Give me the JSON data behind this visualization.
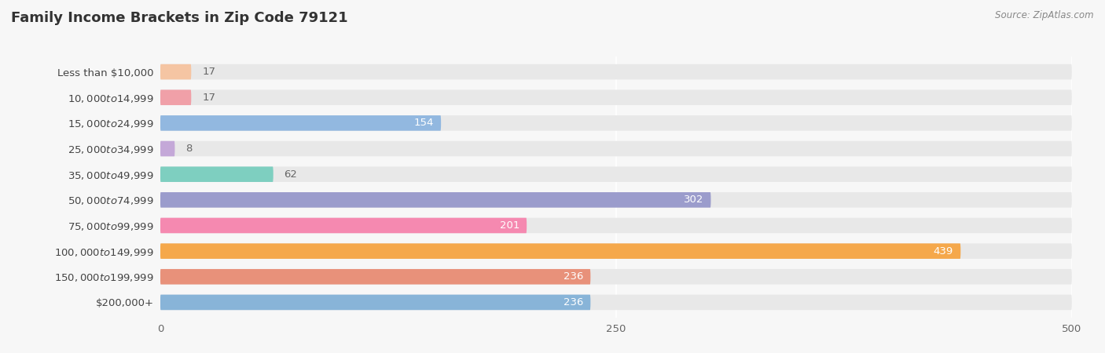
{
  "title": "Family Income Brackets in Zip Code 79121",
  "source": "Source: ZipAtlas.com",
  "categories": [
    "Less than $10,000",
    "$10,000 to $14,999",
    "$15,000 to $24,999",
    "$25,000 to $34,999",
    "$35,000 to $49,999",
    "$50,000 to $74,999",
    "$75,000 to $99,999",
    "$100,000 to $149,999",
    "$150,000 to $199,999",
    "$200,000+"
  ],
  "values": [
    17,
    17,
    154,
    8,
    62,
    302,
    201,
    439,
    236,
    236
  ],
  "colors": [
    "#F5C5A3",
    "#F0A0A8",
    "#92B8E0",
    "#C4A8D8",
    "#7ECFC0",
    "#9B9CCC",
    "#F589B0",
    "#F5A84B",
    "#E8917A",
    "#88B4D8"
  ],
  "xlim": [
    0,
    500
  ],
  "xticks": [
    0,
    250,
    500
  ],
  "background_color": "#f7f7f7",
  "bar_background": "#e8e8e8",
  "title_fontsize": 13,
  "label_fontsize": 9.5,
  "value_fontsize": 9.5
}
